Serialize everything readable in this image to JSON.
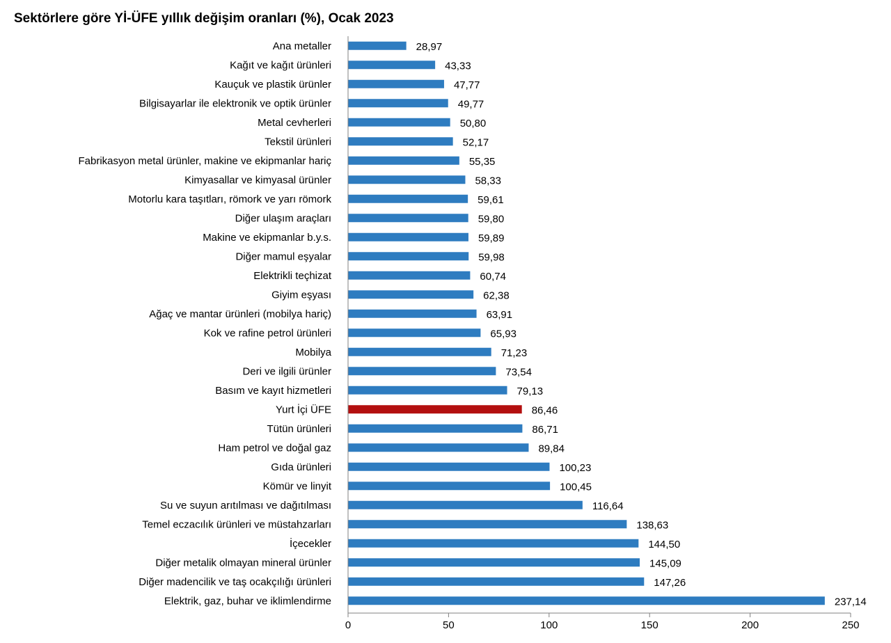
{
  "chart_data": {
    "type": "bar",
    "orientation": "horizontal",
    "title": "Sektörlere göre Yİ-ÜFE yıllık değişim oranları (%), Ocak 2023",
    "xlabel": "",
    "ylabel": "",
    "xlim": [
      0,
      250
    ],
    "xticks": [
      "0",
      "50",
      "100",
      "150",
      "200",
      "250"
    ],
    "grid": false,
    "legend": "none",
    "colors": {
      "default": "#2E7CC0",
      "highlight": "#B30F0F",
      "axis": "#808080",
      "text": "#000000"
    },
    "categories": [
      "Ana metaller",
      "Kağıt ve kağıt ürünleri",
      "Kauçuk ve plastik ürünler",
      "Bilgisayarlar ile elektronik ve optik ürünler",
      "Metal cevherleri",
      "Tekstil ürünleri",
      "Fabrikasyon metal ürünler, makine ve ekipmanlar hariç",
      "Kimyasallar ve kimyasal ürünler",
      "Motorlu kara taşıtları, römork ve yarı römork",
      "Diğer ulaşım araçları",
      "Makine ve ekipmanlar b.y.s.",
      "Diğer mamul eşyalar",
      "Elektrikli teçhizat",
      "Giyim eşyası",
      "Ağaç ve mantar ürünleri (mobilya hariç)",
      "Kok ve rafine petrol ürünleri",
      "Mobilya",
      "Deri ve ilgili ürünler",
      "Basım ve kayıt hizmetleri",
      "Yurt İçi ÜFE",
      "Tütün ürünleri",
      "Ham petrol ve doğal gaz",
      "Gıda ürünleri",
      "Kömür ve linyit",
      "Su ve suyun arıtılması ve dağıtılması",
      "Temel eczacılık ürünleri ve müstahzarları",
      "İçecekler",
      "Diğer metalik olmayan mineral ürünler",
      "Diğer madencilik ve taş ocakçılığı ürünleri",
      "Elektrik, gaz, buhar ve iklimlendirme"
    ],
    "values": [
      28.97,
      43.33,
      47.77,
      49.77,
      50.8,
      52.17,
      55.35,
      58.33,
      59.61,
      59.8,
      59.89,
      59.98,
      60.74,
      62.38,
      63.91,
      65.93,
      71.23,
      73.54,
      79.13,
      86.46,
      86.71,
      89.84,
      100.23,
      100.45,
      116.64,
      138.63,
      144.5,
      145.09,
      147.26,
      237.14
    ],
    "value_labels": [
      "28,97",
      "43,33",
      "47,77",
      "49,77",
      "50,80",
      "52,17",
      "55,35",
      "58,33",
      "59,61",
      "59,80",
      "59,89",
      "59,98",
      "60,74",
      "62,38",
      "63,91",
      "65,93",
      "71,23",
      "73,54",
      "79,13",
      "86,46",
      "86,71",
      "89,84",
      "100,23",
      "100,45",
      "116,64",
      "138,63",
      "144,50",
      "145,09",
      "147,26",
      "237,14"
    ],
    "highlight_index": 19
  }
}
